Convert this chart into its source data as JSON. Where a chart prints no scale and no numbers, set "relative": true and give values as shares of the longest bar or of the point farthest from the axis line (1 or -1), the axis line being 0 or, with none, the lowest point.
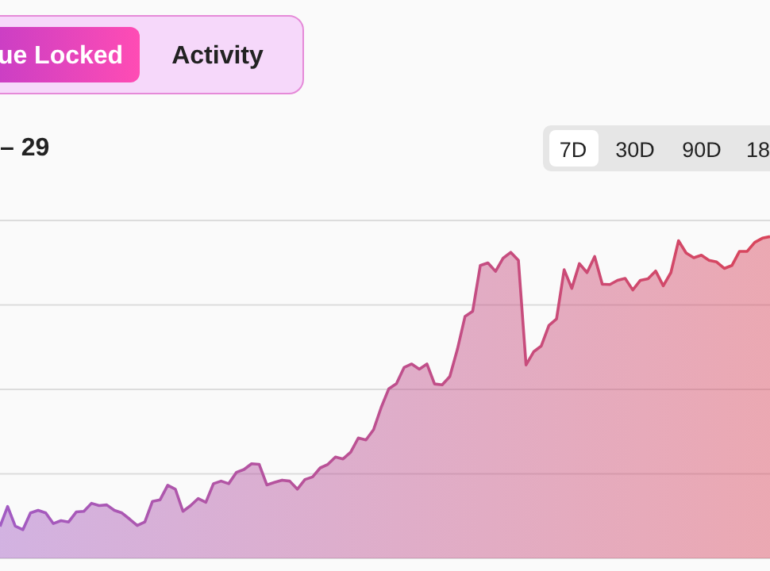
{
  "chart_data": {
    "type": "area",
    "title": "– 29",
    "annotations": [
      "ue Locked",
      "Activity",
      "7D",
      "30D",
      "90D",
      "18"
    ],
    "relative": true,
    "grid": "y",
    "marker": "none",
    "categories": [
      null,
      null,
      null,
      null,
      null,
      null,
      null,
      null,
      null,
      null,
      null,
      null,
      null,
      null,
      null,
      null,
      null,
      null,
      null,
      null,
      null,
      null,
      null,
      null,
      null,
      null,
      null,
      null,
      null,
      null,
      null,
      null,
      null,
      null,
      null,
      null,
      null,
      null,
      null,
      null,
      null,
      null,
      null,
      null,
      null,
      null,
      null,
      null,
      null,
      null,
      null,
      null,
      null,
      null,
      null,
      null,
      null,
      null,
      null,
      null,
      null,
      null,
      null,
      null,
      null,
      null,
      null,
      null,
      null,
      null,
      null,
      null,
      null,
      null,
      null,
      null,
      null,
      null,
      null,
      null,
      null,
      null,
      null,
      null,
      null,
      null,
      null,
      null,
      null,
      null,
      null,
      null,
      null,
      null,
      null,
      null,
      null,
      null,
      null,
      null,
      null,
      null
    ],
    "series": [
      {
        "color": "#d9458c",
        "values": [
          0.099,
          0.161,
          0.1,
          0.089,
          0.141,
          0.149,
          0.141,
          0.108,
          0.117,
          0.113,
          0.144,
          0.146,
          0.171,
          0.164,
          0.166,
          0.149,
          0.141,
          0.122,
          0.102,
          0.113,
          0.177,
          0.182,
          0.227,
          0.215,
          0.146,
          0.164,
          0.186,
          0.174,
          0.232,
          0.24,
          0.232,
          0.267,
          0.276,
          0.294,
          0.292,
          0.228,
          0.236,
          0.243,
          0.24,
          0.215,
          0.245,
          0.253,
          0.281,
          0.292,
          0.315,
          0.309,
          0.33,
          0.374,
          0.368,
          0.4,
          0.469,
          0.527,
          0.543,
          0.593,
          0.604,
          0.588,
          0.604,
          0.542,
          0.539,
          0.565,
          0.65,
          0.752,
          0.768,
          0.91,
          0.918,
          0.892,
          0.933,
          0.951,
          0.926,
          0.601,
          0.642,
          0.66,
          0.724,
          0.744,
          0.897,
          0.839,
          0.916,
          0.888,
          0.938,
          0.852,
          0.851,
          0.864,
          0.87,
          0.834,
          0.864,
          0.869,
          0.893,
          0.847,
          0.888,
          0.987,
          0.949,
          0.934,
          0.942,
          0.926,
          0.921,
          0.901,
          0.91,
          0.954,
          0.954,
          0.982,
          0.995,
          1.0
        ]
      }
    ]
  }
}
